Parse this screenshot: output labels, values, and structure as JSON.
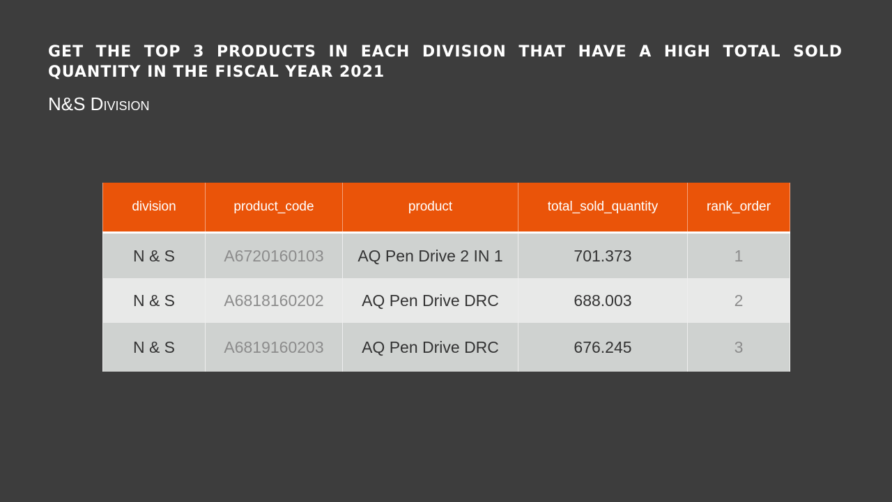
{
  "slide": {
    "title": "GET THE TOP 3 PRODUCTS IN EACH DIVISION THAT HAVE A HIGH TOTAL SOLD QUANTITY IN THE FISCAL YEAR 2021",
    "subtitle": "N&S Division"
  },
  "colors": {
    "background": "#3d3d3d",
    "header": "#ea5409",
    "row_dark": "#cfd2d0",
    "row_light": "#e8e9e8"
  },
  "table": {
    "columns": [
      "division",
      "product_code",
      "product",
      "total_sold_quantity",
      "rank_order"
    ],
    "rows": [
      {
        "division": "N & S",
        "product_code": "A6720160103",
        "product": "AQ Pen Drive 2 IN 1",
        "total_sold_quantity": "701.373",
        "rank_order": "1"
      },
      {
        "division": "N & S",
        "product_code": "A6818160202",
        "product": "AQ Pen Drive DRC",
        "total_sold_quantity": "688.003",
        "rank_order": "2"
      },
      {
        "division": "N & S",
        "product_code": "A6819160203",
        "product": "AQ Pen Drive DRC",
        "total_sold_quantity": "676.245",
        "rank_order": "3"
      }
    ]
  }
}
